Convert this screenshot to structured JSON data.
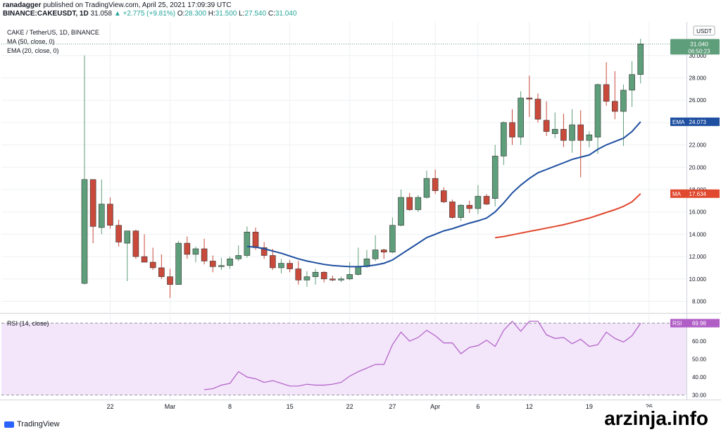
{
  "header": {
    "line1_user": "ranadagger",
    "line1_rest": "published on TradingView.com, April 25, 2021 17:09:39 UTC",
    "symbol": "BINANCE:CAKEUSDT, 1D",
    "last": "31.058",
    "change": "▲ +2.775 (+9.81%)",
    "o_label": "O:",
    "o": "28.300",
    "h_label": "H:",
    "h": "31.500",
    "l_label": "L:",
    "l": "27.540",
    "c_label": "C:",
    "c": "31.040"
  },
  "legend": {
    "symbol_line": "CAKE / TetherUS, 1D, BINANCE",
    "ma_line": "MA (50, close, 0)",
    "ema_line": "EMA (20, close, 0)",
    "rsi_line": "RSI (14, close)"
  },
  "footer": {
    "logo_text": "TradingView"
  },
  "watermark": {
    "text": "arzinja.info"
  },
  "colors": {
    "up": "#5f9e7a",
    "down": "#c9493b",
    "ema": "#1e4fa0",
    "ma": "#e0482f",
    "rsi_line": "#b05ec6",
    "rsi_band": "#f3e5fa",
    "grid": "#eef0f3"
  },
  "chart_data": [
    {
      "type": "candlestick",
      "title": "CAKE / TetherUS, 1D, BINANCE",
      "currency_label": "USDT",
      "ylim": [
        7,
        33
      ],
      "y_ticks": [
        8,
        10,
        12,
        14,
        16,
        18,
        20,
        22,
        24,
        26,
        28,
        30
      ],
      "y_tick_labels": [
        "8.000",
        "10.000",
        "12.000",
        "14.000",
        "16.000",
        "18.000",
        "20.000",
        "22.000",
        "24.000",
        "26.000",
        "28.000",
        "30.000"
      ],
      "x_tick_labels": [
        {
          "day": 4,
          "label": "22"
        },
        {
          "day": 11,
          "label": "Mar"
        },
        {
          "day": 18,
          "label": "8"
        },
        {
          "day": 25,
          "label": "15"
        },
        {
          "day": 32,
          "label": "22"
        },
        {
          "day": 37,
          "label": "27"
        },
        {
          "day": 42,
          "label": "Apr"
        },
        {
          "day": 47,
          "label": "6"
        },
        {
          "day": 53,
          "label": "12"
        },
        {
          "day": 60,
          "label": "19"
        },
        {
          "day": 67,
          "label": "26"
        }
      ],
      "candles": [
        {
          "day": 1,
          "o": 9.6,
          "h": 30.0,
          "l": 9.5,
          "c": 18.9
        },
        {
          "day": 2,
          "o": 18.9,
          "h": 18.9,
          "l": 13.2,
          "c": 14.7
        },
        {
          "day": 3,
          "o": 14.6,
          "h": 18.9,
          "l": 14.0,
          "c": 16.7
        },
        {
          "day": 4,
          "o": 16.7,
          "h": 17.3,
          "l": 14.5,
          "c": 14.8
        },
        {
          "day": 5,
          "o": 14.8,
          "h": 15.3,
          "l": 12.9,
          "c": 13.3
        },
        {
          "day": 6,
          "o": 13.2,
          "h": 14.2,
          "l": 9.8,
          "c": 14.3
        },
        {
          "day": 7,
          "o": 14.3,
          "h": 14.4,
          "l": 11.8,
          "c": 12.0
        },
        {
          "day": 8,
          "o": 12.0,
          "h": 14.0,
          "l": 11.5,
          "c": 11.5
        },
        {
          "day": 9,
          "o": 11.5,
          "h": 12.8,
          "l": 10.8,
          "c": 11.0
        },
        {
          "day": 10,
          "o": 11.0,
          "h": 12.2,
          "l": 10.0,
          "c": 10.2
        },
        {
          "day": 11,
          "o": 10.2,
          "h": 10.9,
          "l": 8.3,
          "c": 9.5
        },
        {
          "day": 12,
          "o": 9.5,
          "h": 13.4,
          "l": 9.5,
          "c": 13.2
        },
        {
          "day": 13,
          "o": 13.2,
          "h": 13.8,
          "l": 11.8,
          "c": 12.2
        },
        {
          "day": 14,
          "o": 12.2,
          "h": 12.9,
          "l": 11.5,
          "c": 12.7
        },
        {
          "day": 15,
          "o": 12.7,
          "h": 13.6,
          "l": 11.3,
          "c": 11.6
        },
        {
          "day": 16,
          "o": 11.6,
          "h": 12.1,
          "l": 10.6,
          "c": 11.1
        },
        {
          "day": 17,
          "o": 11.1,
          "h": 11.9,
          "l": 10.8,
          "c": 11.2
        },
        {
          "day": 18,
          "o": 11.2,
          "h": 12.0,
          "l": 10.9,
          "c": 11.8
        },
        {
          "day": 19,
          "o": 11.8,
          "h": 13.0,
          "l": 11.6,
          "c": 12.1
        },
        {
          "day": 20,
          "o": 12.1,
          "h": 14.7,
          "l": 11.9,
          "c": 14.2
        },
        {
          "day": 21,
          "o": 14.2,
          "h": 14.6,
          "l": 12.6,
          "c": 12.8
        },
        {
          "day": 22,
          "o": 12.8,
          "h": 13.3,
          "l": 11.8,
          "c": 12.1
        },
        {
          "day": 23,
          "o": 12.1,
          "h": 12.7,
          "l": 10.8,
          "c": 11.0
        },
        {
          "day": 24,
          "o": 11.0,
          "h": 11.8,
          "l": 10.5,
          "c": 11.4
        },
        {
          "day": 25,
          "o": 11.4,
          "h": 11.7,
          "l": 10.6,
          "c": 10.9
        },
        {
          "day": 26,
          "o": 10.9,
          "h": 11.6,
          "l": 9.5,
          "c": 9.9
        },
        {
          "day": 27,
          "o": 9.9,
          "h": 10.7,
          "l": 9.3,
          "c": 10.2
        },
        {
          "day": 28,
          "o": 10.2,
          "h": 10.9,
          "l": 9.5,
          "c": 10.6
        },
        {
          "day": 29,
          "o": 10.6,
          "h": 10.7,
          "l": 9.7,
          "c": 10.0
        },
        {
          "day": 30,
          "o": 10.0,
          "h": 10.3,
          "l": 9.8,
          "c": 9.9
        },
        {
          "day": 31,
          "o": 9.9,
          "h": 10.2,
          "l": 9.7,
          "c": 10.0
        },
        {
          "day": 32,
          "o": 10.0,
          "h": 11.5,
          "l": 9.9,
          "c": 10.4
        },
        {
          "day": 33,
          "o": 10.4,
          "h": 12.8,
          "l": 10.3,
          "c": 11.1
        },
        {
          "day": 34,
          "o": 11.1,
          "h": 12.6,
          "l": 11.0,
          "c": 11.8
        },
        {
          "day": 35,
          "o": 11.8,
          "h": 13.9,
          "l": 11.6,
          "c": 12.6
        },
        {
          "day": 36,
          "o": 12.6,
          "h": 12.7,
          "l": 11.8,
          "c": 12.4
        },
        {
          "day": 37,
          "o": 12.4,
          "h": 15.5,
          "l": 12.3,
          "c": 14.8
        },
        {
          "day": 38,
          "o": 14.8,
          "h": 18.0,
          "l": 14.7,
          "c": 17.3
        },
        {
          "day": 39,
          "o": 17.3,
          "h": 17.7,
          "l": 16.1,
          "c": 16.2
        },
        {
          "day": 40,
          "o": 16.2,
          "h": 17.5,
          "l": 16.0,
          "c": 17.3
        },
        {
          "day": 41,
          "o": 17.3,
          "h": 19.7,
          "l": 17.2,
          "c": 19.0
        },
        {
          "day": 42,
          "o": 19.0,
          "h": 19.8,
          "l": 17.6,
          "c": 17.9
        },
        {
          "day": 43,
          "o": 17.9,
          "h": 18.2,
          "l": 16.8,
          "c": 16.9
        },
        {
          "day": 44,
          "o": 16.9,
          "h": 17.1,
          "l": 15.4,
          "c": 15.5
        },
        {
          "day": 45,
          "o": 15.5,
          "h": 16.7,
          "l": 15.2,
          "c": 16.6
        },
        {
          "day": 46,
          "o": 16.6,
          "h": 17.0,
          "l": 15.9,
          "c": 16.3
        },
        {
          "day": 47,
          "o": 16.3,
          "h": 18.4,
          "l": 15.8,
          "c": 17.4
        },
        {
          "day": 48,
          "o": 17.4,
          "h": 17.6,
          "l": 16.6,
          "c": 16.7
        },
        {
          "day": 49,
          "o": 17.2,
          "h": 22.0,
          "l": 16.5,
          "c": 21.0
        },
        {
          "day": 50,
          "o": 21.0,
          "h": 24.1,
          "l": 20.2,
          "c": 24.0
        },
        {
          "day": 51,
          "o": 24.0,
          "h": 25.2,
          "l": 22.0,
          "c": 22.7
        },
        {
          "day": 52,
          "o": 22.7,
          "h": 26.8,
          "l": 22.0,
          "c": 26.2
        },
        {
          "day": 53,
          "o": 26.2,
          "h": 28.2,
          "l": 24.5,
          "c": 26.1
        },
        {
          "day": 54,
          "o": 26.1,
          "h": 26.6,
          "l": 24.0,
          "c": 24.3
        },
        {
          "day": 55,
          "o": 24.2,
          "h": 25.9,
          "l": 22.8,
          "c": 23.2
        },
        {
          "day": 56,
          "o": 23.0,
          "h": 24.9,
          "l": 22.6,
          "c": 23.4
        },
        {
          "day": 57,
          "o": 23.4,
          "h": 24.8,
          "l": 21.8,
          "c": 22.4
        },
        {
          "day": 58,
          "o": 22.4,
          "h": 25.2,
          "l": 21.3,
          "c": 23.8
        },
        {
          "day": 59,
          "o": 23.8,
          "h": 25.1,
          "l": 19.1,
          "c": 22.4
        },
        {
          "day": 60,
          "o": 22.4,
          "h": 23.2,
          "l": 21.8,
          "c": 22.9
        },
        {
          "day": 61,
          "o": 22.7,
          "h": 27.5,
          "l": 21.2,
          "c": 27.4
        },
        {
          "day": 62,
          "o": 27.4,
          "h": 29.4,
          "l": 25.5,
          "c": 25.9
        },
        {
          "day": 63,
          "o": 25.9,
          "h": 28.6,
          "l": 24.3,
          "c": 25.0
        },
        {
          "day": 64,
          "o": 25.0,
          "h": 27.4,
          "l": 21.9,
          "c": 26.9
        },
        {
          "day": 65,
          "o": 26.9,
          "h": 29.5,
          "l": 25.4,
          "c": 28.3
        },
        {
          "day": 66,
          "o": 28.3,
          "h": 31.5,
          "l": 27.5,
          "c": 31.04
        }
      ],
      "ema_20": [
        {
          "day": 20,
          "v": 12.9
        },
        {
          "day": 21,
          "v": 12.85
        },
        {
          "day": 22,
          "v": 12.7
        },
        {
          "day": 23,
          "v": 12.5
        },
        {
          "day": 24,
          "v": 12.3
        },
        {
          "day": 25,
          "v": 12.05
        },
        {
          "day": 26,
          "v": 11.8
        },
        {
          "day": 27,
          "v": 11.6
        },
        {
          "day": 28,
          "v": 11.45
        },
        {
          "day": 29,
          "v": 11.3
        },
        {
          "day": 30,
          "v": 11.2
        },
        {
          "day": 31,
          "v": 11.15
        },
        {
          "day": 32,
          "v": 11.1
        },
        {
          "day": 33,
          "v": 11.1
        },
        {
          "day": 34,
          "v": 11.15
        },
        {
          "day": 35,
          "v": 11.25
        },
        {
          "day": 36,
          "v": 11.4
        },
        {
          "day": 37,
          "v": 11.7
        },
        {
          "day": 38,
          "v": 12.2
        },
        {
          "day": 39,
          "v": 12.7
        },
        {
          "day": 40,
          "v": 13.2
        },
        {
          "day": 41,
          "v": 13.7
        },
        {
          "day": 42,
          "v": 14.0
        },
        {
          "day": 43,
          "v": 14.3
        },
        {
          "day": 44,
          "v": 14.5
        },
        {
          "day": 45,
          "v": 14.75
        },
        {
          "day": 46,
          "v": 15.0
        },
        {
          "day": 47,
          "v": 15.2
        },
        {
          "day": 48,
          "v": 15.45
        },
        {
          "day": 49,
          "v": 16.0
        },
        {
          "day": 50,
          "v": 16.8
        },
        {
          "day": 51,
          "v": 17.7
        },
        {
          "day": 52,
          "v": 18.4
        },
        {
          "day": 53,
          "v": 19.0
        },
        {
          "day": 54,
          "v": 19.5
        },
        {
          "day": 55,
          "v": 19.8
        },
        {
          "day": 56,
          "v": 20.1
        },
        {
          "day": 57,
          "v": 20.4
        },
        {
          "day": 58,
          "v": 20.7
        },
        {
          "day": 59,
          "v": 20.9
        },
        {
          "day": 60,
          "v": 21.1
        },
        {
          "day": 61,
          "v": 21.6
        },
        {
          "day": 62,
          "v": 22.0
        },
        {
          "day": 63,
          "v": 22.3
        },
        {
          "day": 64,
          "v": 22.6
        },
        {
          "day": 65,
          "v": 23.2
        },
        {
          "day": 66,
          "v": 24.07
        }
      ],
      "ma_50": [
        {
          "day": 49,
          "v": 13.7
        },
        {
          "day": 50,
          "v": 13.8
        },
        {
          "day": 51,
          "v": 13.95
        },
        {
          "day": 52,
          "v": 14.1
        },
        {
          "day": 53,
          "v": 14.25
        },
        {
          "day": 54,
          "v": 14.4
        },
        {
          "day": 55,
          "v": 14.55
        },
        {
          "day": 56,
          "v": 14.7
        },
        {
          "day": 57,
          "v": 14.85
        },
        {
          "day": 58,
          "v": 15.05
        },
        {
          "day": 59,
          "v": 15.25
        },
        {
          "day": 60,
          "v": 15.45
        },
        {
          "day": 61,
          "v": 15.7
        },
        {
          "day": 62,
          "v": 15.95
        },
        {
          "day": 63,
          "v": 16.2
        },
        {
          "day": 64,
          "v": 16.5
        },
        {
          "day": 65,
          "v": 16.9
        },
        {
          "day": 66,
          "v": 17.634
        }
      ],
      "last_price_label": "31.040",
      "countdown_label": "06:50:23",
      "ema_label": "EMA",
      "ema_value_label": "24.073",
      "ma_label": "MA",
      "ma_value_label": "17.634"
    },
    {
      "type": "line",
      "title": "RSI (14, close)",
      "ylim": [
        27,
        72
      ],
      "band": [
        30,
        70
      ],
      "y_ticks": [
        30,
        40,
        50,
        60
      ],
      "y_tick_labels": [
        "30.00",
        "40.00",
        "50.00",
        "60.00"
      ],
      "values": [
        {
          "day": 15,
          "v": 33.0
        },
        {
          "day": 16,
          "v": 33.5
        },
        {
          "day": 17,
          "v": 35.5
        },
        {
          "day": 18,
          "v": 36.5
        },
        {
          "day": 19,
          "v": 43.0
        },
        {
          "day": 20,
          "v": 40.0
        },
        {
          "day": 21,
          "v": 39.0
        },
        {
          "day": 22,
          "v": 37.0
        },
        {
          "day": 23,
          "v": 38.0
        },
        {
          "day": 24,
          "v": 36.5
        },
        {
          "day": 25,
          "v": 35.0
        },
        {
          "day": 26,
          "v": 35.0
        },
        {
          "day": 27,
          "v": 36.0
        },
        {
          "day": 28,
          "v": 35.5
        },
        {
          "day": 29,
          "v": 35.5
        },
        {
          "day": 30,
          "v": 36.0
        },
        {
          "day": 31,
          "v": 37.0
        },
        {
          "day": 32,
          "v": 40.5
        },
        {
          "day": 33,
          "v": 43.0
        },
        {
          "day": 34,
          "v": 45.0
        },
        {
          "day": 35,
          "v": 47.0
        },
        {
          "day": 36,
          "v": 47.0
        },
        {
          "day": 37,
          "v": 58.0
        },
        {
          "day": 38,
          "v": 65.0
        },
        {
          "day": 39,
          "v": 60.0
        },
        {
          "day": 40,
          "v": 62.0
        },
        {
          "day": 41,
          "v": 66.0
        },
        {
          "day": 42,
          "v": 63.0
        },
        {
          "day": 43,
          "v": 59.0
        },
        {
          "day": 44,
          "v": 59.0
        },
        {
          "day": 45,
          "v": 53.0
        },
        {
          "day": 46,
          "v": 56.5
        },
        {
          "day": 47,
          "v": 57.5
        },
        {
          "day": 48,
          "v": 60.5
        },
        {
          "day": 49,
          "v": 57.0
        },
        {
          "day": 50,
          "v": 66.0
        },
        {
          "day": 51,
          "v": 71.0
        },
        {
          "day": 52,
          "v": 65.5
        },
        {
          "day": 53,
          "v": 71.0
        },
        {
          "day": 54,
          "v": 71.0
        },
        {
          "day": 55,
          "v": 63.5
        },
        {
          "day": 56,
          "v": 61.5
        },
        {
          "day": 57,
          "v": 62.0
        },
        {
          "day": 58,
          "v": 58.5
        },
        {
          "day": 59,
          "v": 61.0
        },
        {
          "day": 60,
          "v": 57.0
        },
        {
          "day": 61,
          "v": 58.0
        },
        {
          "day": 62,
          "v": 65.0
        },
        {
          "day": 63,
          "v": 61.5
        },
        {
          "day": 64,
          "v": 59.5
        },
        {
          "day": 65,
          "v": 63.0
        },
        {
          "day": 66,
          "v": 69.98
        }
      ],
      "value_label": "RSI",
      "value_text": "69.98"
    }
  ]
}
